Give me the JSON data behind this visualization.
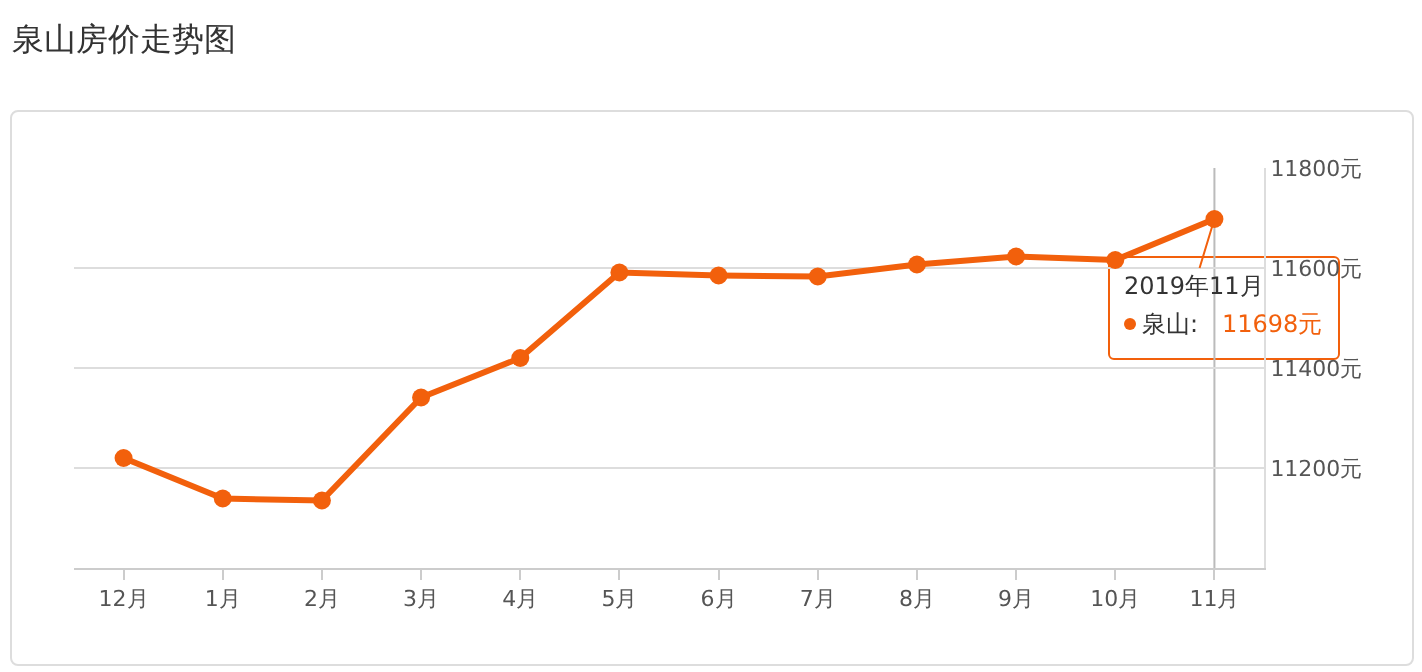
{
  "chart_data": {
    "type": "line",
    "title": "泉山房价走势图",
    "categories": [
      "12月",
      "1月",
      "2月",
      "3月",
      "4月",
      "5月",
      "6月",
      "7月",
      "8月",
      "9月",
      "10月",
      "11月"
    ],
    "series": [
      {
        "color": "#f2600c",
        "values": [
          11220,
          11139,
          11135,
          11341,
          11420,
          11591,
          11585,
          11583,
          11607,
          11623,
          11616,
          11698
        ]
      }
    ],
    "annotations": [
      {
        "text": "2019年11月",
        "x": "11月",
        "y": 11698
      },
      "泉山:",
      "11698元"
    ],
    "ref_lines": [
      {
        "axis": "x",
        "value": "11月",
        "color": "#bbbbbb"
      }
    ],
    "ylim": [
      11000,
      11800
    ],
    "yticks": [
      {
        "value": 11000,
        "label": null
      },
      {
        "value": 11200,
        "label": "11200元"
      },
      {
        "value": 11400,
        "label": "11400元"
      },
      {
        "value": 11600,
        "label": "11600元"
      },
      {
        "value": 11800,
        "label": "11800元"
      }
    ],
    "grid": "y",
    "marker": "circle",
    "line_style": "solid",
    "legend": false
  }
}
